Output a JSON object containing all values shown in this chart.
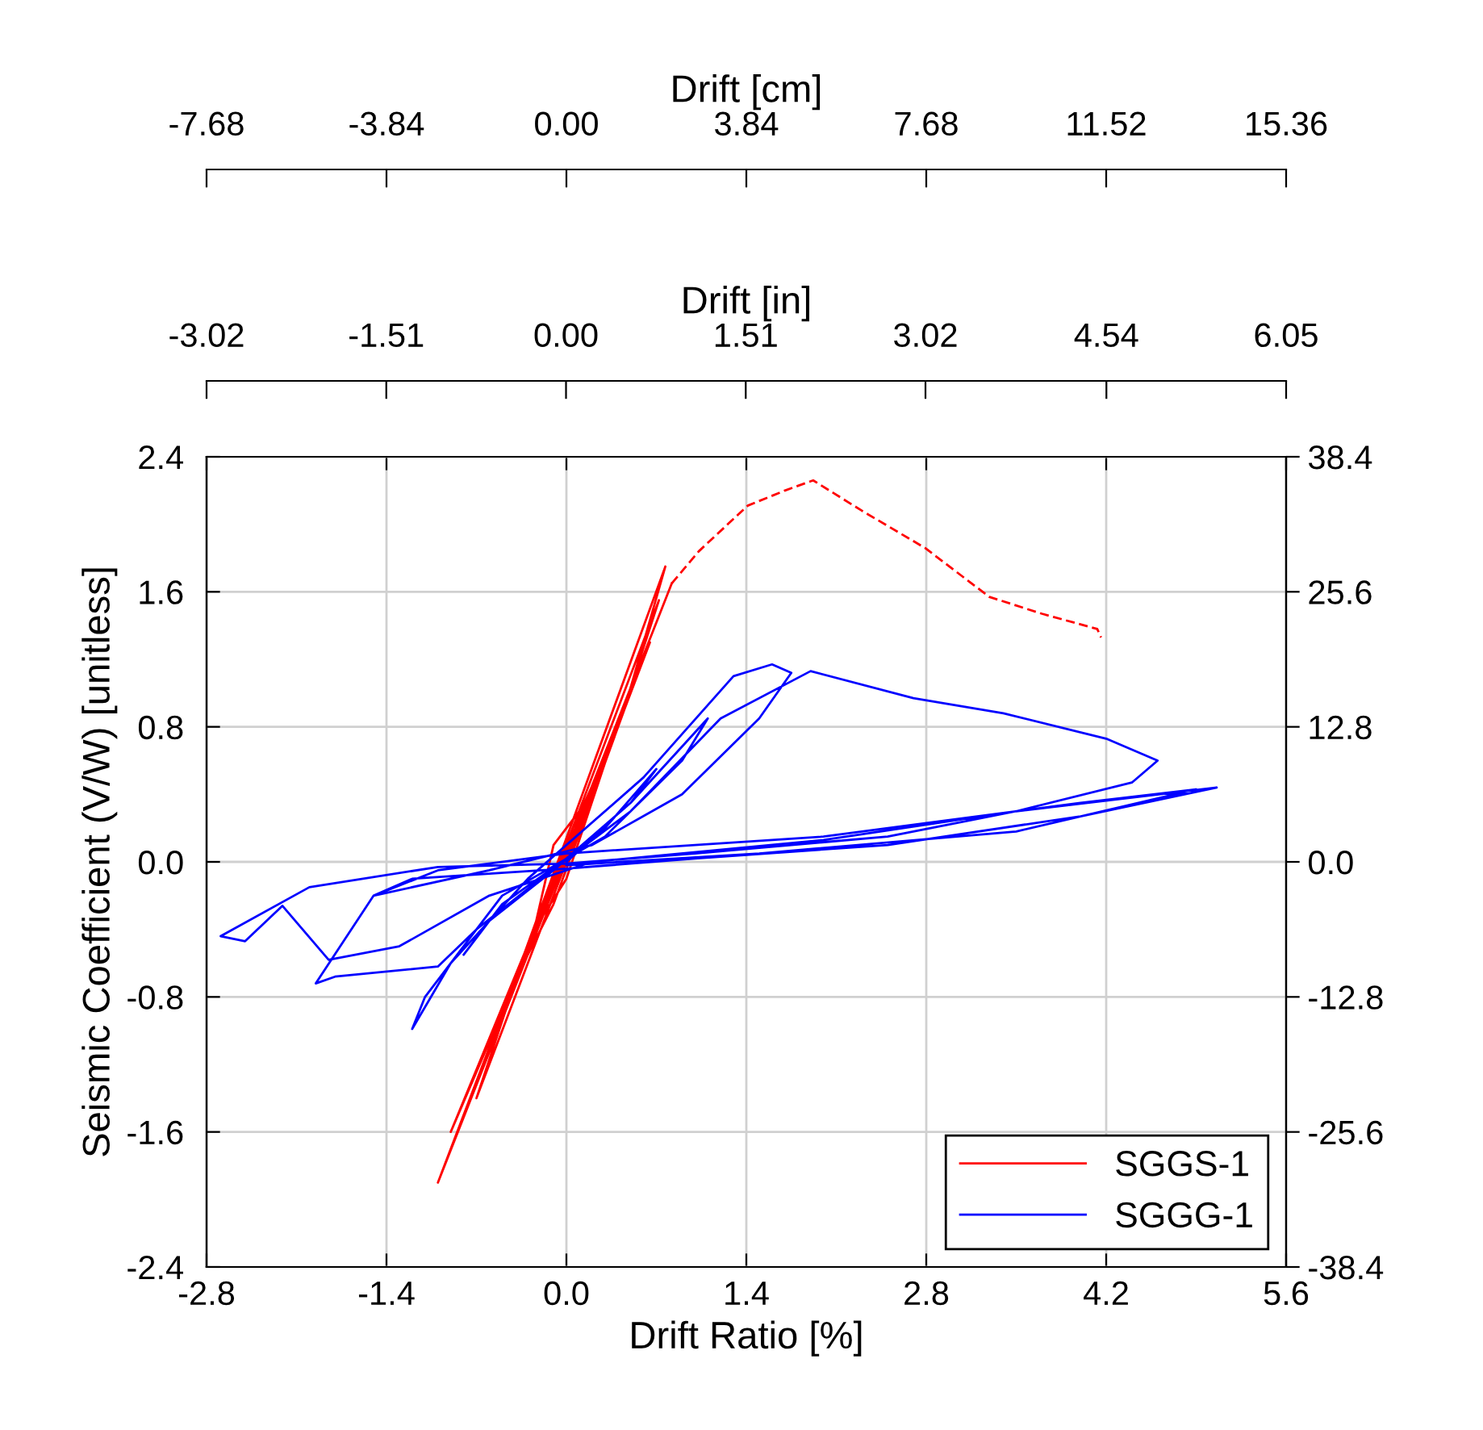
{
  "chart_data": {
    "type": "line",
    "xlabel": "Drift Ratio [%]",
    "ylabel": "Seismic Coefficient (V/W) [unitless]",
    "x2label": "Drift [in]",
    "xlim": [
      -2.8,
      5.6
    ],
    "xticks": [
      -2.8,
      -1.4,
      {
        "value": 0,
        "label": "0.0"
      },
      1.4,
      2.8,
      4.2,
      5.6
    ],
    "ylim": [
      -2.4,
      2.4
    ],
    "yticks": [
      -2.4,
      -1.6,
      -0.8,
      {
        "value": 0,
        "label": "0.0"
      },
      0.8,
      1.6,
      2.4
    ],
    "y2lim": [
      -38.4,
      38.4
    ],
    "y2ticks": [
      -38.4,
      -25.6,
      -12.8,
      {
        "value": 0,
        "label": "0.0"
      },
      12.8,
      25.6,
      38.4
    ],
    "x2lim": [
      -3.02,
      6.05
    ],
    "x2ticks": [
      -3.02,
      -1.51,
      {
        "value": 0,
        "label": "0.00"
      },
      1.51,
      3.02,
      4.54,
      6.05
    ],
    "grid": true,
    "legend": "bottom right",
    "series": [
      {
        "name": "SGGS-1",
        "color": "#ff0000",
        "line_style": "solid",
        "x": [
          0,
          0.2,
          -0.1,
          -0.25,
          0,
          0.35,
          0.05,
          -0.4,
          -0.1,
          0.45,
          0.15,
          -0.5,
          -0.2,
          0.55,
          0.2,
          -0.6,
          -0.3,
          0.65,
          0.3,
          -0.7,
          -0.35,
          0.72,
          0.4,
          -0.9,
          -0.45,
          0.77,
          0.45,
          -1.0,
          -0.5,
          0.82
        ],
        "values": [
          0,
          0.4,
          0.1,
          -0.4,
          -0.1,
          0.7,
          0.2,
          -0.7,
          -0.25,
          0.9,
          0.35,
          -0.9,
          -0.35,
          1.1,
          0.45,
          -1.1,
          -0.5,
          1.3,
          0.6,
          -1.4,
          -0.6,
          1.55,
          0.8,
          -1.6,
          -0.8,
          1.75,
          0.9,
          -1.9,
          -0.9,
          1.65
        ]
      },
      {
        "color": "#ff0000",
        "line_style": "dashed",
        "x": [
          0.82,
          1.03,
          1.41,
          1.7,
          1.92,
          2.3,
          2.79,
          3.29,
          3.7,
          4.13,
          4.16
        ],
        "values": [
          1.65,
          1.84,
          2.11,
          2.2,
          2.26,
          2.08,
          1.86,
          1.57,
          1.47,
          1.38,
          1.33
        ]
      },
      {
        "name": "SGGG-1",
        "color": "#0000ff",
        "line_style": "solid",
        "x": [
          0,
          0.3,
          0.7,
          0.5,
          0.0,
          -0.5,
          -0.8,
          -0.6,
          -0.1,
          0.5,
          1.1,
          0.9,
          0.3,
          -0.5,
          -1.1,
          -1.2,
          -0.9,
          -0.3,
          0.6,
          1.3,
          1.6,
          1.75,
          1.5,
          0.9,
          0.2,
          -0.6,
          -1.5,
          -1.95,
          -1.8,
          -1.0,
          -0.7,
          -0.2,
          0.5,
          1.2,
          1.9,
          2.7,
          3.4,
          4.2,
          4.6,
          4.4,
          3.5,
          2.5,
          1.0,
          0.0,
          -1.0,
          -2.0,
          -2.69,
          -2.5,
          -2.21,
          -1.85,
          -1.3,
          -0.6,
          0.2,
          2.0,
          3.5,
          5.06,
          4.0,
          2.5,
          1.0,
          0.0,
          -1.2,
          -1.5,
          -1.0,
          0.0,
          2.0,
          4.0,
          4.9,
          3.5,
          1.5,
          0.0
        ],
        "values": [
          0,
          0.2,
          0.55,
          0.35,
          0.02,
          -0.25,
          -0.55,
          -0.35,
          -0.05,
          0.35,
          0.85,
          0.6,
          0.15,
          -0.2,
          -0.8,
          -0.99,
          -0.6,
          -0.1,
          0.5,
          1.1,
          1.17,
          1.12,
          0.85,
          0.4,
          0.1,
          -0.05,
          -0.2,
          -0.72,
          -0.68,
          -0.62,
          -0.4,
          -0.1,
          0.3,
          0.85,
          1.13,
          0.97,
          0.88,
          0.73,
          0.6,
          0.47,
          0.3,
          0.15,
          0.05,
          -0.01,
          -0.03,
          -0.15,
          -0.44,
          -0.47,
          -0.26,
          -0.58,
          -0.5,
          -0.2,
          0.0,
          0.13,
          0.3,
          0.44,
          0.27,
          0.1,
          0.02,
          -0.04,
          -0.1,
          -0.2,
          -0.05,
          0.05,
          0.15,
          0.35,
          0.43,
          0.18,
          0.05,
          -0.02
        ]
      }
    ],
    "annotations": [
      "Drift [cm]",
      "-7.68",
      "-3.84",
      "0.00",
      "3.84",
      "7.68",
      "11.52",
      "15.36"
    ]
  }
}
